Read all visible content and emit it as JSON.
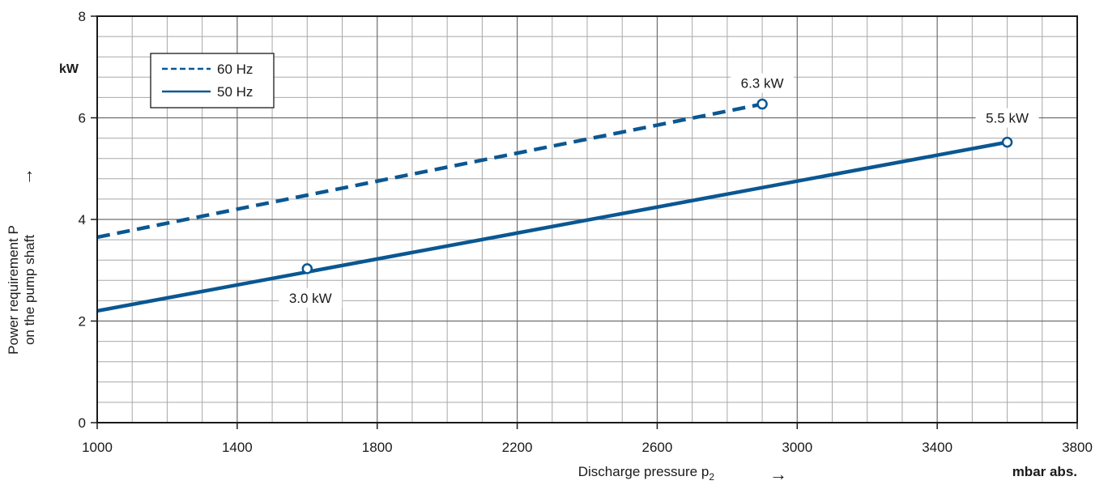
{
  "chart_data": {
    "type": "line",
    "title": "",
    "xlabel": "Discharge pressure p",
    "xlabel_subscript": "2",
    "xunit": "mbar abs.",
    "ylabel_line1": "Power requirement P",
    "ylabel_line2": "on the pump shaft",
    "yunit": "kW",
    "arrow_glyph": "→",
    "xlim": [
      1000,
      3800
    ],
    "ylim": [
      0,
      8
    ],
    "xticks": [
      1000,
      1400,
      1800,
      2200,
      2600,
      3000,
      3400,
      3800
    ],
    "yticks": [
      0,
      2,
      4,
      6,
      8
    ],
    "x_minor_step": 100,
    "y_minor_step": 0.4,
    "grid": true,
    "legend_position": "top-left",
    "line_color": "#0a5792",
    "series": [
      {
        "name": "60 Hz",
        "style": "dashed",
        "x": [
          1000,
          2900
        ],
        "y": [
          3.65,
          6.27
        ]
      },
      {
        "name": "50 Hz",
        "style": "solid",
        "x": [
          1000,
          3600
        ],
        "y": [
          2.2,
          5.52
        ]
      }
    ],
    "annotations": [
      {
        "label": "6.3 kW",
        "x": 2900,
        "y": 6.27
      },
      {
        "label": "5.5 kW",
        "x": 3600,
        "y": 5.52
      },
      {
        "label": "3.0 kW",
        "x": 1600,
        "y": 3.03
      }
    ]
  }
}
